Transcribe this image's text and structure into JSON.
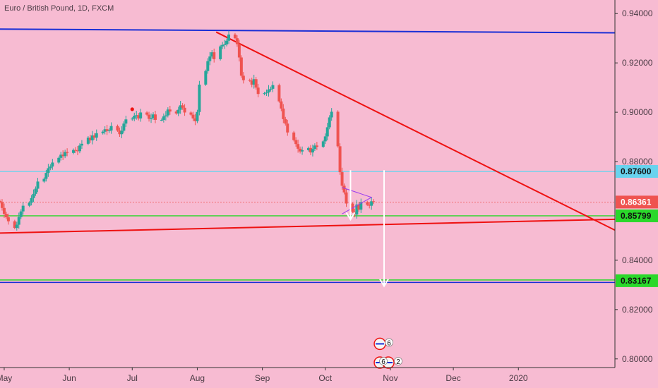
{
  "header": {
    "title": "Euro / British Pound, 1D, FXCM"
  },
  "colors": {
    "background": "#f7bbd2",
    "up": "#26a69a",
    "down": "#ef5350",
    "blue": "#1a2fd6",
    "red": "#ee1111",
    "cyan": "#68d3ee",
    "green": "#2ad82a",
    "white": "#ffffff"
  },
  "chart_data": {
    "type": "candlestick",
    "title": "Euro / British Pound, 1D, FXCM",
    "symbol": "EUR/GBP",
    "interval": "1D",
    "source": "FXCM",
    "y_range": [
      0.7965,
      0.9455
    ],
    "x_range": [
      "2019-04-29",
      "2020-02-16"
    ],
    "y_ticks": [
      "0.94000",
      "0.92000",
      "0.90000",
      "0.88000",
      "0.84000",
      "0.82000",
      "0.80000"
    ],
    "x_ticks": [
      {
        "label": "May",
        "date": "2019-05-01"
      },
      {
        "label": "Jun",
        "date": "2019-06-01"
      },
      {
        "label": "Jul",
        "date": "2019-07-01"
      },
      {
        "label": "Aug",
        "date": "2019-08-01"
      },
      {
        "label": "Sep",
        "date": "2019-09-01"
      },
      {
        "label": "Oct",
        "date": "2019-10-01"
      },
      {
        "label": "Nov",
        "date": "2019-11-01"
      },
      {
        "label": "Dec",
        "date": "2019-12-01"
      },
      {
        "label": "2020",
        "date": "2020-01-01"
      }
    ],
    "price_labels": [
      {
        "value": "0.87600",
        "y": 0.876,
        "bg": "#68d3ee"
      },
      {
        "value": "0.86361",
        "y": 0.8636,
        "bg": "#ef5350",
        "fg": "#ffffff"
      },
      {
        "value": "0.85799",
        "y": 0.858,
        "bg": "#2ad82a"
      },
      {
        "value": "0.83167",
        "y": 0.8317,
        "bg": "#2ad82a"
      }
    ],
    "horizontal_lines": [
      {
        "y": 0.876,
        "color": "cyan"
      },
      {
        "y": 0.858,
        "color": "green"
      },
      {
        "y": 0.832,
        "color": "green"
      },
      {
        "y": 0.831,
        "color": "blue"
      }
    ],
    "trendlines": [
      {
        "color": "blue",
        "from": [
          "2019-04-29",
          0.9337
        ],
        "to": [
          "2020-02-16",
          0.9322
        ]
      },
      {
        "color": "red",
        "from": [
          "2019-04-29",
          0.851
        ],
        "to": [
          "2020-02-16",
          0.8566
        ]
      },
      {
        "color": "red",
        "from": [
          "2019-08-10",
          0.9325
        ],
        "to": [
          "2020-02-16",
          0.8522
        ]
      }
    ],
    "arrows": [
      {
        "from": [
          "2019-10-13",
          0.8765
        ],
        "to": [
          "2019-10-13",
          0.8565
        ]
      },
      {
        "from": [
          "2019-10-29",
          0.8765
        ],
        "to": [
          "2019-10-29",
          0.8295
        ]
      }
    ],
    "close": [
      0.8636,
      0.8612,
      0.8588,
      0.8574,
      0.8558,
      0.8531,
      0.8544,
      0.8575,
      0.8598,
      0.8621,
      0.8633,
      0.8652,
      0.8669,
      0.869,
      0.8719,
      0.873,
      0.8754,
      0.8773,
      0.878,
      0.8796,
      0.8815,
      0.8828,
      0.8822,
      0.8839,
      0.8835,
      0.8847,
      0.8845,
      0.8842,
      0.8865,
      0.8872,
      0.8897,
      0.8886,
      0.8906,
      0.8897,
      0.8915,
      0.8921,
      0.8931,
      0.8924,
      0.8926,
      0.8944,
      0.8926,
      0.8911,
      0.8925,
      0.8954,
      0.8971,
      0.8974,
      0.8986,
      0.8988,
      0.8975,
      0.8999,
      0.899,
      0.8973,
      0.8977,
      0.8991,
      0.8969,
      0.8969,
      0.8983,
      0.8987,
      0.9011,
      0.9003,
      0.8995,
      0.901,
      0.9028,
      0.9018,
      0.8999,
      0.899,
      0.8975,
      0.8964,
      0.9001,
      0.9112,
      0.9167,
      0.9207,
      0.9226,
      0.9243,
      0.9215,
      0.9267,
      0.9273,
      0.9275,
      0.929,
      0.9315,
      0.93,
      0.9276,
      0.9222,
      0.9148,
      0.913,
      0.9128,
      0.9112,
      0.9134,
      0.91,
      0.9074,
      0.9077,
      0.908,
      0.9092,
      0.9095,
      0.911,
      0.9044,
      0.9015,
      0.8972,
      0.8954,
      0.8918,
      0.8887,
      0.8871,
      0.8852,
      0.8841,
      0.8846,
      0.8855,
      0.8837,
      0.8851,
      0.8865,
      0.886,
      0.8882,
      0.8902,
      0.8939,
      0.8979,
      0.9002,
      0.8862,
      0.8757,
      0.8702,
      0.8675,
      0.863,
      0.8597,
      0.8585,
      0.8626,
      0.8605,
      0.8635,
      0.8625,
      0.8621,
      0.8639,
      0.8636
    ],
    "last_price": 0.8636
  },
  "badges": [
    {
      "text": "6"
    },
    {
      "text": "6"
    },
    {
      "text": "2"
    }
  ]
}
